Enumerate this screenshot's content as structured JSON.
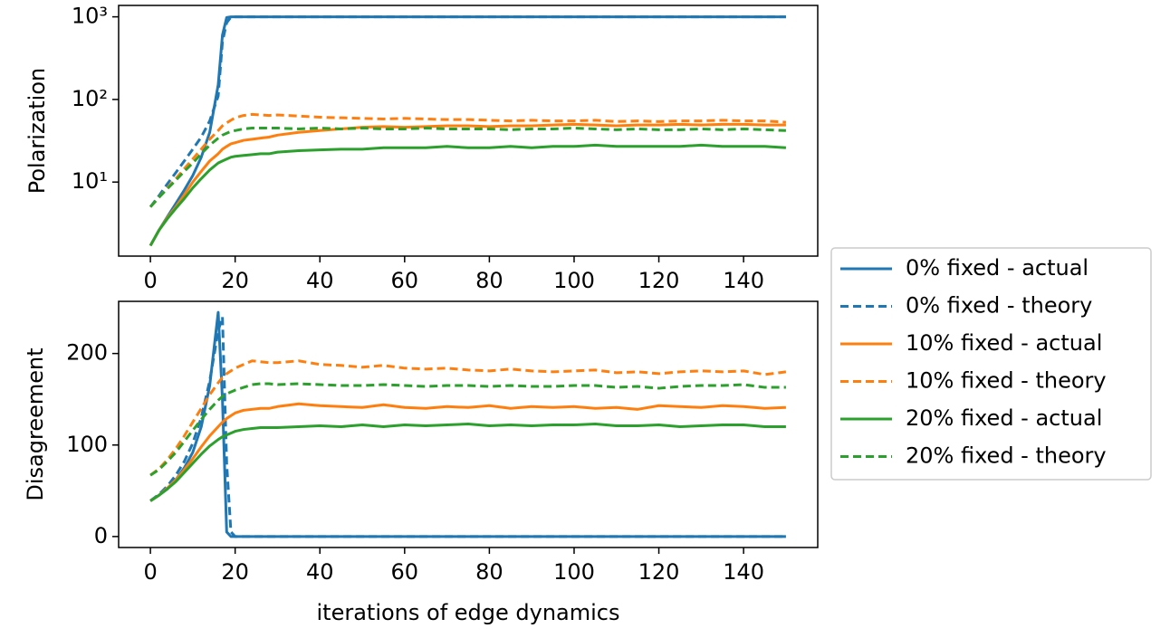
{
  "chart_data": [
    {
      "type": "line",
      "ylabel": "Polarization",
      "log": true,
      "x": [
        0,
        2,
        4,
        6,
        8,
        10,
        12,
        14,
        16,
        17,
        18,
        19,
        20,
        22,
        24,
        26,
        28,
        30,
        35,
        40,
        45,
        50,
        55,
        60,
        65,
        70,
        75,
        80,
        85,
        90,
        95,
        100,
        105,
        110,
        115,
        120,
        125,
        130,
        135,
        140,
        145,
        150
      ],
      "xlim": [
        -7.5,
        157.5
      ],
      "xticks": [
        0,
        20,
        40,
        60,
        80,
        100,
        120,
        140
      ],
      "ylim": [
        1.27,
        1374
      ],
      "yticks": [
        {
          "value": 10,
          "label": "10¹"
        },
        {
          "value": 100,
          "label": "10²"
        },
        {
          "value": 1000,
          "label": "10³"
        }
      ],
      "legend": "outside right",
      "series": [
        {
          "name": "0% fixed - actual",
          "color": "#1f77b4",
          "linestyle": "solid",
          "values": [
            1.7,
            2.6,
            3.8,
            5.5,
            8,
            12,
            20,
            40,
            150,
            600,
            980,
            1000,
            1000,
            1000,
            1000,
            1000,
            1000,
            1000,
            1000,
            1000,
            1000,
            1000,
            1000,
            1000,
            1000,
            1000,
            1000,
            1000,
            1000,
            1000,
            1000,
            1000,
            1000,
            1000,
            1000,
            1000,
            1000,
            1000,
            1000,
            1000,
            1000,
            1000
          ]
        },
        {
          "name": "0% fixed - theory",
          "color": "#1f77b4",
          "linestyle": "dashed",
          "values": [
            5,
            6.8,
            9.5,
            13,
            18,
            25,
            35,
            55,
            110,
            500,
            850,
            990,
            1000,
            1000,
            1000,
            1000,
            1000,
            1000,
            1000,
            1000,
            1000,
            1000,
            1000,
            1000,
            1000,
            1000,
            1000,
            1000,
            1000,
            1000,
            1000,
            1000,
            1000,
            1000,
            1000,
            1000,
            1000,
            1000,
            1000,
            1000,
            1000,
            1000
          ]
        },
        {
          "name": "10% fixed - actual",
          "color": "#ff7f0e",
          "linestyle": "solid",
          "values": [
            1.7,
            2.6,
            3.7,
            5,
            7,
            10,
            13.5,
            18,
            22,
            25,
            27,
            29,
            30,
            32,
            33,
            34,
            35,
            37,
            40,
            42,
            44,
            46,
            47,
            46,
            47,
            48,
            48,
            47,
            48,
            48,
            49,
            50,
            49,
            48,
            49,
            49,
            50,
            49,
            50,
            50,
            49,
            49
          ]
        },
        {
          "name": "10% fixed - theory",
          "color": "#ff7f0e",
          "linestyle": "dashed",
          "values": [
            5,
            6.5,
            8.5,
            11,
            14.5,
            19,
            25,
            33,
            42,
            48,
            52,
            56,
            60,
            64,
            66,
            65,
            64,
            65,
            63,
            61,
            60,
            59,
            58,
            59,
            58,
            57,
            57,
            56,
            55,
            56,
            55,
            55,
            56,
            54,
            55,
            54,
            55,
            55,
            56,
            55,
            55,
            53
          ]
        },
        {
          "name": "20% fixed - actual",
          "color": "#2ca02c",
          "linestyle": "solid",
          "values": [
            1.7,
            2.6,
            3.6,
            4.8,
            6.3,
            8.5,
            11,
            14,
            17,
            18,
            19,
            20,
            20.5,
            21,
            21.5,
            22,
            22,
            23,
            24,
            24.5,
            25,
            25,
            26,
            26,
            26,
            27,
            26,
            26,
            27,
            26,
            27,
            27,
            28,
            27,
            27,
            27,
            27,
            28,
            27,
            27,
            27,
            26
          ]
        },
        {
          "name": "20% fixed - theory",
          "color": "#2ca02c",
          "linestyle": "dashed",
          "values": [
            5,
            6.5,
            8.3,
            10.5,
            13.5,
            17,
            22,
            28,
            34,
            37,
            39,
            41,
            42,
            44,
            45,
            45,
            45,
            45,
            44,
            45,
            44,
            45,
            44,
            44,
            45,
            44,
            44,
            44,
            43,
            44,
            44,
            45,
            44,
            43,
            44,
            43,
            43,
            44,
            43,
            44,
            43,
            42
          ]
        }
      ]
    },
    {
      "type": "line",
      "ylabel": "Disagreement",
      "xlabel": "iterations of edge dynamics",
      "log": false,
      "x": [
        0,
        2,
        4,
        6,
        8,
        10,
        12,
        14,
        16,
        17,
        18,
        19,
        20,
        22,
        24,
        26,
        28,
        30,
        35,
        40,
        45,
        50,
        55,
        60,
        65,
        70,
        75,
        80,
        85,
        90,
        95,
        100,
        105,
        110,
        115,
        120,
        125,
        130,
        135,
        140,
        145,
        150
      ],
      "xlim": [
        -7.5,
        157.5
      ],
      "xticks": [
        0,
        20,
        40,
        60,
        80,
        100,
        120,
        140
      ],
      "ylim": [
        -12,
        257
      ],
      "yticks": [
        0,
        100,
        200
      ],
      "series": [
        {
          "name": "0% fixed - actual",
          "color": "#1f77b4",
          "linestyle": "solid",
          "values": [
            39,
            45,
            52,
            62,
            75,
            92,
            120,
            165,
            245,
            150,
            5,
            0,
            0,
            0,
            0,
            0,
            0,
            0,
            0,
            0,
            0,
            0,
            0,
            0,
            0,
            0,
            0,
            0,
            0,
            0,
            0,
            0,
            0,
            0,
            0,
            0,
            0,
            0,
            0,
            0,
            0,
            0
          ]
        },
        {
          "name": "0% fixed - theory",
          "color": "#1f77b4",
          "linestyle": "dashed",
          "values": [
            39,
            46,
            55,
            67,
            82,
            102,
            130,
            170,
            225,
            240,
            80,
            5,
            0,
            0,
            0,
            0,
            0,
            0,
            0,
            0,
            0,
            0,
            0,
            0,
            0,
            0,
            0,
            0,
            0,
            0,
            0,
            0,
            0,
            0,
            0,
            0,
            0,
            0,
            0,
            0,
            0,
            0
          ]
        },
        {
          "name": "10% fixed - actual",
          "color": "#ff7f0e",
          "linestyle": "solid",
          "values": [
            39,
            45,
            53,
            62,
            73,
            85,
            98,
            110,
            120,
            125,
            129,
            132,
            135,
            138,
            139,
            140,
            140,
            142,
            145,
            143,
            142,
            141,
            144,
            141,
            140,
            142,
            141,
            143,
            140,
            142,
            141,
            142,
            140,
            141,
            139,
            143,
            142,
            141,
            143,
            142,
            140,
            141
          ]
        },
        {
          "name": "10% fixed - theory",
          "color": "#ff7f0e",
          "linestyle": "dashed",
          "values": [
            67,
            74,
            84,
            96,
            110,
            125,
            140,
            155,
            168,
            174,
            178,
            181,
            184,
            188,
            192,
            191,
            190,
            190,
            192,
            188,
            187,
            185,
            187,
            184,
            183,
            184,
            182,
            181,
            183,
            181,
            180,
            181,
            182,
            179,
            180,
            178,
            180,
            181,
            180,
            181,
            177,
            180
          ]
        },
        {
          "name": "20% fixed - actual",
          "color": "#2ca02c",
          "linestyle": "solid",
          "values": [
            39,
            45,
            52,
            60,
            70,
            80,
            90,
            99,
            106,
            109,
            111,
            113,
            115,
            117,
            118,
            119,
            119,
            119,
            120,
            121,
            120,
            122,
            120,
            122,
            121,
            122,
            123,
            121,
            122,
            121,
            122,
            122,
            123,
            121,
            121,
            122,
            120,
            121,
            122,
            122,
            120,
            120
          ]
        },
        {
          "name": "20% fixed - theory",
          "color": "#2ca02c",
          "linestyle": "dashed",
          "values": [
            67,
            73,
            82,
            92,
            104,
            116,
            128,
            139,
            149,
            153,
            156,
            158,
            160,
            163,
            166,
            167,
            167,
            166,
            167,
            166,
            165,
            165,
            166,
            165,
            164,
            165,
            165,
            164,
            165,
            164,
            164,
            165,
            165,
            163,
            164,
            162,
            164,
            165,
            165,
            166,
            163,
            163
          ]
        }
      ]
    }
  ]
}
